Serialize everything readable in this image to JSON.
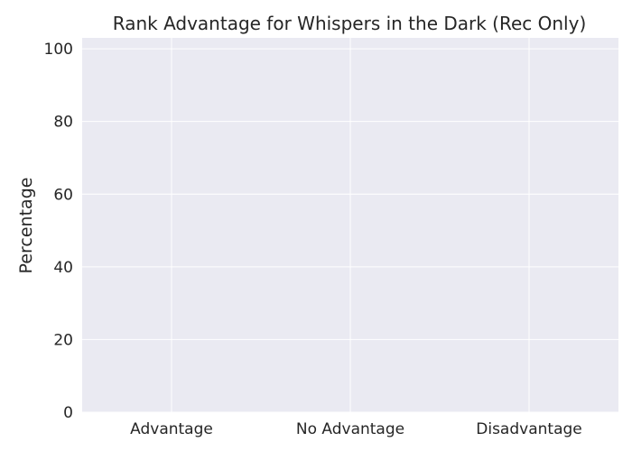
{
  "chart_data": {
    "type": "bar",
    "title": "Rank Advantage for Whispers in the Dark (Rec Only)",
    "xlabel": "",
    "ylabel": "Percentage",
    "categories": [
      "Advantage",
      "No Advantage",
      "Disadvantage"
    ],
    "values": [
      0,
      0,
      0
    ],
    "ylim": [
      0,
      103
    ],
    "yticks": [
      0,
      20,
      40,
      60,
      80,
      100
    ],
    "grid": true,
    "legend": "none",
    "colors": {
      "plot_background": "#EAEAF2",
      "grid": "#FFFFFF",
      "text": "#262626",
      "bar": "#4C72B0"
    }
  }
}
